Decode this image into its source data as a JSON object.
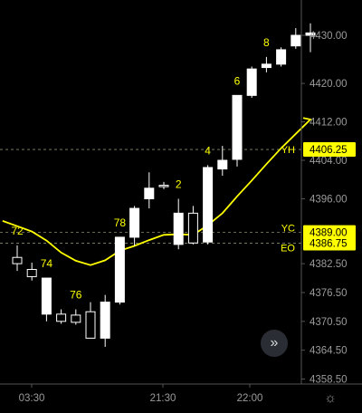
{
  "chart_data": {
    "type": "candlestick",
    "y_range": [
      4356,
      4437
    ],
    "y_axis_ticks": [
      "4430.00",
      "4420.00",
      "4412.00",
      "4404.00",
      "4396.00",
      "4382.50",
      "4376.50",
      "4370.50",
      "4364.50",
      "4358.50"
    ],
    "x_axis_ticks": [
      "03:30",
      "21:30",
      "22:00"
    ],
    "price_levels": [
      {
        "label": "YH",
        "value": 4406.25,
        "display": "4406.25",
        "color": "#ffff00"
      },
      {
        "label": "YC",
        "value": 4389.0,
        "display": "4389.00",
        "color": "#ffff00"
      },
      {
        "label": "EO",
        "value": 4386.75,
        "display": "4386.75",
        "color": "#ffff00"
      }
    ],
    "candles": [
      {
        "o": 4383.8,
        "h": 4386.3,
        "l": 4381.0,
        "c": 4382.5
      },
      {
        "o": 4381.3,
        "h": 4382.7,
        "l": 4379.0,
        "c": 4379.8
      },
      {
        "o": 4372.0,
        "h": 4379.5,
        "l": 4370.5,
        "c": 4379.5
      },
      {
        "o": 4372.0,
        "h": 4373.0,
        "l": 4370.0,
        "c": 4370.5
      },
      {
        "o": 4371.8,
        "h": 4373.0,
        "l": 4369.8,
        "c": 4370.3
      },
      {
        "o": 4372.5,
        "h": 4374.5,
        "l": 4367.0,
        "c": 4367.0
      },
      {
        "o": 4367.0,
        "h": 4376.0,
        "l": 4365.2,
        "c": 4374.5
      },
      {
        "o": 4374.5,
        "h": 4388.0,
        "l": 4374.0,
        "c": 4388.0
      },
      {
        "o": 4388.0,
        "h": 4394.5,
        "l": 4386.2,
        "c": 4394.0
      },
      {
        "o": 4396.0,
        "h": 4401.5,
        "l": 4394.0,
        "c": 4398.2
      },
      {
        "o": 4398.8,
        "h": 4399.5,
        "l": 4398.0,
        "c": 4398.6
      },
      {
        "o": 4386.5,
        "h": 4396.0,
        "l": 4385.5,
        "c": 4393.0
      },
      {
        "o": 4393.0,
        "h": 4394.5,
        "l": 4386.5,
        "c": 4386.8
      },
      {
        "o": 4387.0,
        "h": 4403.0,
        "l": 4386.5,
        "c": 4402.5
      },
      {
        "o": 4402.2,
        "h": 4407.0,
        "l": 4400.8,
        "c": 4404.0
      },
      {
        "o": 4404.2,
        "h": 4417.5,
        "l": 4402.7,
        "c": 4417.5
      },
      {
        "o": 4417.5,
        "h": 4423.5,
        "l": 4417.0,
        "c": 4423.0
      },
      {
        "o": 4423.3,
        "h": 4425.5,
        "l": 4422.3,
        "c": 4424.0
      },
      {
        "o": 4424.0,
        "h": 4427.5,
        "l": 4423.5,
        "c": 4427.0
      },
      {
        "o": 4427.8,
        "h": 4431.5,
        "l": 4427.2,
        "c": 4430.0
      },
      {
        "o": 4430.0,
        "h": 4432.5,
        "l": 4426.5,
        "c": 4430.5
      }
    ],
    "bar_numbers": [
      {
        "text": "72",
        "bar": 0,
        "pos": "above"
      },
      {
        "text": "74",
        "bar": 2,
        "pos": "above"
      },
      {
        "text": "76",
        "bar": 4,
        "pos": "above"
      },
      {
        "text": "78",
        "bar": 7,
        "pos": "above"
      },
      {
        "text": "2",
        "bar": 11,
        "pos": "above"
      },
      {
        "text": "4",
        "bar": 13,
        "pos": "above"
      },
      {
        "text": "6",
        "bar": 15,
        "pos": "above"
      },
      {
        "text": "8",
        "bar": 17,
        "pos": "above"
      }
    ],
    "moving_average": {
      "color": "#ffff00",
      "points": [
        [
          -1,
          4391.4
        ],
        [
          0,
          4390.3
        ],
        [
          1,
          4389.2
        ],
        [
          2,
          4387.3
        ],
        [
          3,
          4384.8
        ],
        [
          4,
          4383.1
        ],
        [
          5,
          4382.2
        ],
        [
          6,
          4383.2
        ],
        [
          7,
          4385.2
        ],
        [
          8,
          4386.2
        ],
        [
          9,
          4387.4
        ],
        [
          10,
          4388.5
        ],
        [
          11,
          4388.6
        ],
        [
          12,
          4388.5
        ],
        [
          13,
          4390.5
        ],
        [
          14,
          4393.0
        ],
        [
          15,
          4396.5
        ],
        [
          16,
          4399.8
        ],
        [
          17,
          4403.2
        ],
        [
          18,
          4406.5
        ],
        [
          19,
          4409.5
        ],
        [
          20,
          4412.5
        ]
      ]
    }
  },
  "controls": {
    "scroll_icon": "double-chevron-right-icon",
    "scroll_glyph": "»",
    "settings_icon": "gear-icon",
    "settings_glyph": "☼"
  },
  "colors": {
    "background": "#000000",
    "candle": "#ffffff",
    "accent": "#ffff00",
    "axis_text": "#9a9a9a",
    "axis_line": "#555555"
  }
}
